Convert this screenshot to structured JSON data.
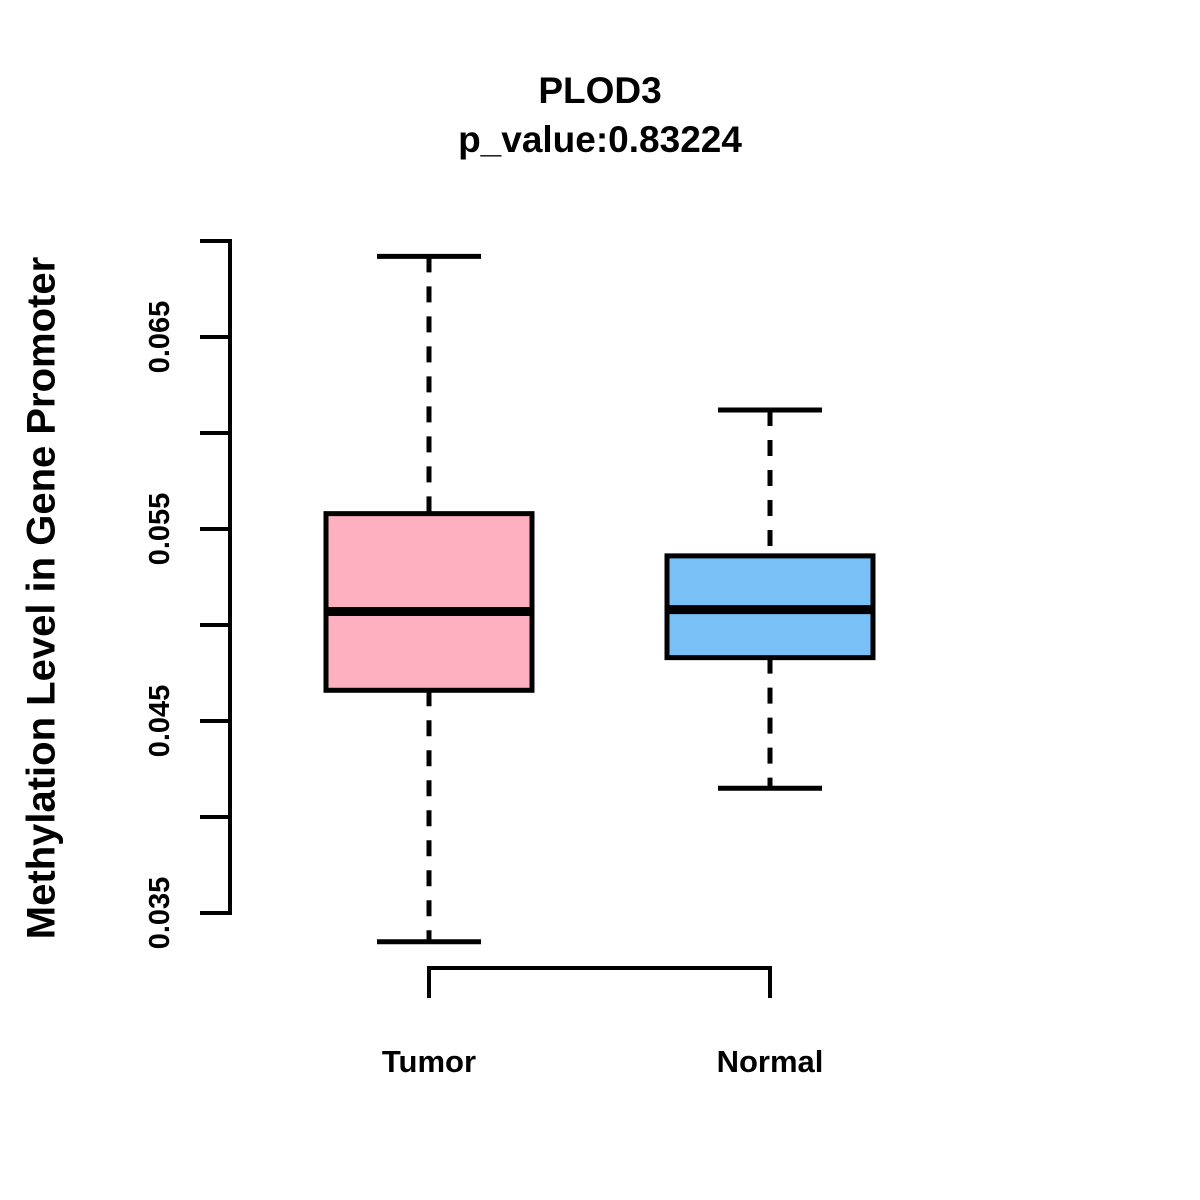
{
  "chart_data": {
    "type": "box",
    "title": "PLOD3",
    "subtitle": "p_value:0.83224",
    "p_value": 0.83224,
    "ylabel": "Methylation Level in Gene Promoter",
    "xlabel": "",
    "categories": [
      "Tumor",
      "Normal"
    ],
    "series": [
      {
        "name": "Tumor",
        "whisker_low": 0.0335,
        "q1": 0.0466,
        "median": 0.0507,
        "q3": 0.0558,
        "whisker_high": 0.0692,
        "fill_color": "#FFB0C0"
      },
      {
        "name": "Normal",
        "whisker_low": 0.0415,
        "q1": 0.0483,
        "median": 0.0508,
        "q3": 0.0536,
        "whisker_high": 0.0612,
        "fill_color": "#78C0F5"
      }
    ],
    "y_axis_ticks": [
      {
        "value": 0.035,
        "label": "0.035"
      },
      {
        "value": 0.045,
        "label": "0.045"
      },
      {
        "value": 0.055,
        "label": "0.055"
      },
      {
        "value": 0.065,
        "label": "0.065"
      }
    ],
    "y_axis_minor_ticks": [
      0.04,
      0.05,
      0.06,
      0.07
    ],
    "ylim": [
      0.035,
      0.07
    ],
    "grid": false,
    "legend": "none",
    "line_color": "#000000",
    "background_color": "#FFFFFF"
  }
}
